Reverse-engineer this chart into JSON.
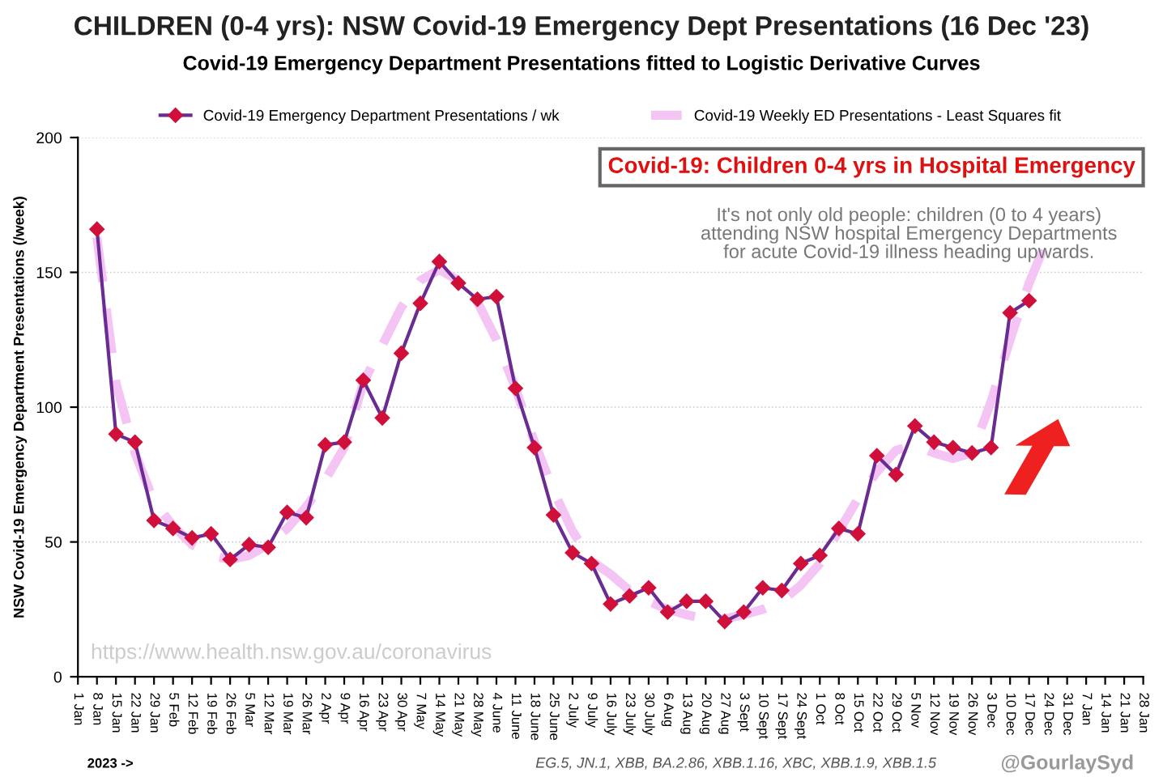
{
  "chart_data": {
    "type": "line",
    "title": "CHILDREN (0-4 yrs): NSW Covid-19 Emergency Dept Presentations (16 Dec '23)",
    "subtitle": "Covid-19 Emergency Department Presentations fitted to Logistic Derivative Curves",
    "ylabel": "NSW Covid-19 Emergency Department Presentations (/week)",
    "categories": [
      "1 Jan",
      "8 Jan",
      "15 Jan",
      "22 Jan",
      "29 Jan",
      "5 Feb",
      "12 Feb",
      "19 Feb",
      "26 Feb",
      "5 Mar",
      "12 Mar",
      "19 Mar",
      "26 Mar",
      "2 Apr",
      "9 Apr",
      "16 Apr",
      "23 Apr",
      "30 Apr",
      "7 May",
      "14 May",
      "21 May",
      "28 May",
      "4 June",
      "11 June",
      "18 June",
      "25 June",
      "2 July",
      "9 July",
      "16 July",
      "23 July",
      "30 July",
      "6 Aug",
      "13 Aug",
      "20 Aug",
      "27 Aug",
      "3 Sept",
      "10 Sept",
      "17 Sept",
      "24 Sept",
      "1 Oct",
      "8 Oct",
      "15 Oct",
      "22 Oct",
      "29 Oct",
      "5 Nov",
      "12 Nov",
      "19 Nov",
      "26 Nov",
      "3 Dec",
      "10 Dec",
      "17 Dec",
      "24 Dec",
      "31 Dec",
      "7 Jan",
      "14 Jan",
      "21 Jan",
      "28 Jan"
    ],
    "series": [
      {
        "name": "Covid-19 Emergency Department Presentations / wk",
        "color": "#6a2c91",
        "marker": "diamond",
        "line_style": "solid",
        "values": [
          null,
          166,
          90,
          87,
          58,
          55,
          51.5,
          53,
          43.5,
          49,
          48,
          61,
          59,
          86,
          87,
          110,
          96,
          120,
          138.5,
          154,
          146,
          140,
          141,
          107,
          85,
          60,
          46,
          42,
          27,
          30,
          33,
          24,
          28,
          28,
          20.5,
          24,
          33,
          32,
          42,
          45,
          55,
          53,
          82,
          75,
          93,
          87,
          85,
          83,
          85,
          135,
          139.5,
          null,
          null,
          null,
          null,
          null,
          null
        ]
      },
      {
        "name": "Covid-19 Weekly ED Presentations - Least Squares fit",
        "color": "#f4c4f4",
        "marker": "none",
        "line_style": "dashed",
        "values": [
          null,
          163,
          109,
          83,
          65,
          56,
          49,
          45,
          43.5,
          45,
          49,
          55,
          63,
          73,
          85,
          109,
          123,
          137,
          147,
          151,
          147,
          139,
          125,
          107,
          87,
          69,
          54,
          43,
          38,
          32,
          28,
          25,
          23,
          21.5,
          21.5,
          23,
          25,
          28,
          34,
          42,
          54,
          66,
          76,
          84,
          86,
          83,
          81,
          83,
          102,
          125,
          146,
          163,
          null,
          null,
          null,
          null,
          null
        ]
      }
    ],
    "ylim": [
      0,
      200
    ],
    "yticks": [
      0,
      50,
      100,
      150,
      200
    ],
    "grid": "y",
    "legend": "top",
    "annotations": [
      "Covid-19: Children 0-4 yrs in Hospital Emergency",
      "It's not only old people: children (0 to 4 years)\nattending NSW hospital Emergency Departments\nfor acute Covid-19 illness heading upwards.",
      "https://www.health.nsw.gov.au/coronavirus",
      "2023 ->",
      "EG.5, JN.1, XBB, BA.2.86, XBB.1.16, XBC, XBB.1.9, XBB.1.5",
      "@GourlaySyd"
    ]
  }
}
